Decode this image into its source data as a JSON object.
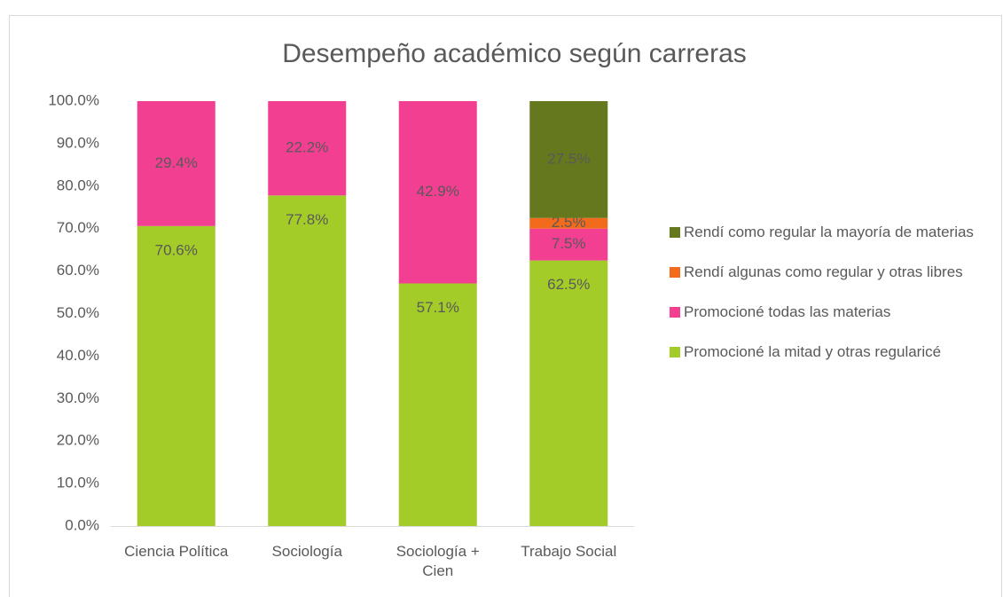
{
  "chart_data": {
    "type": "stacked_bar",
    "title": "Desempeño académico según carreras",
    "categories": [
      "Ciencia Política",
      "Sociología",
      "Sociología + Cien",
      "Trabajo Social"
    ],
    "series": [
      {
        "name": "Promocioné la mitad y otras regularicé",
        "color": "#a3cc29",
        "values": [
          70.6,
          77.8,
          57.1,
          62.5
        ],
        "value_labels": [
          "70.6%",
          "77.8%",
          "57.1%",
          "62.5%"
        ]
      },
      {
        "name": "Promocioné todas las materias",
        "color": "#f23f92",
        "values": [
          29.4,
          22.2,
          42.9,
          7.5
        ],
        "value_labels": [
          "29.4%",
          "22.2%",
          "42.9%",
          "7.5%"
        ]
      },
      {
        "name": "Rendí algunas como regular y otras libres",
        "color": "#f26a1b",
        "values": [
          null,
          null,
          null,
          2.5
        ],
        "value_labels": [
          null,
          null,
          null,
          "2.5%"
        ]
      },
      {
        "name": "Rendí como regular la mayoría de materias",
        "color": "#66781e",
        "values": [
          null,
          null,
          null,
          27.5
        ],
        "value_labels": [
          null,
          null,
          null,
          "27.5%"
        ]
      }
    ],
    "ylim": [
      0,
      100
    ],
    "yticks": [
      {
        "value": 0,
        "label": "0.0%"
      },
      {
        "value": 10,
        "label": "10.0%"
      },
      {
        "value": 20,
        "label": "20.0%"
      },
      {
        "value": 30,
        "label": "30.0%"
      },
      {
        "value": 40,
        "label": "40.0%"
      },
      {
        "value": 50,
        "label": "50.0%"
      },
      {
        "value": 60,
        "label": "60.0%"
      },
      {
        "value": 70,
        "label": "70.0%"
      },
      {
        "value": 80,
        "label": "80.0%"
      },
      {
        "value": 90,
        "label": "90.0%"
      },
      {
        "value": 100,
        "label": "100.0%"
      }
    ],
    "legend": "right"
  }
}
